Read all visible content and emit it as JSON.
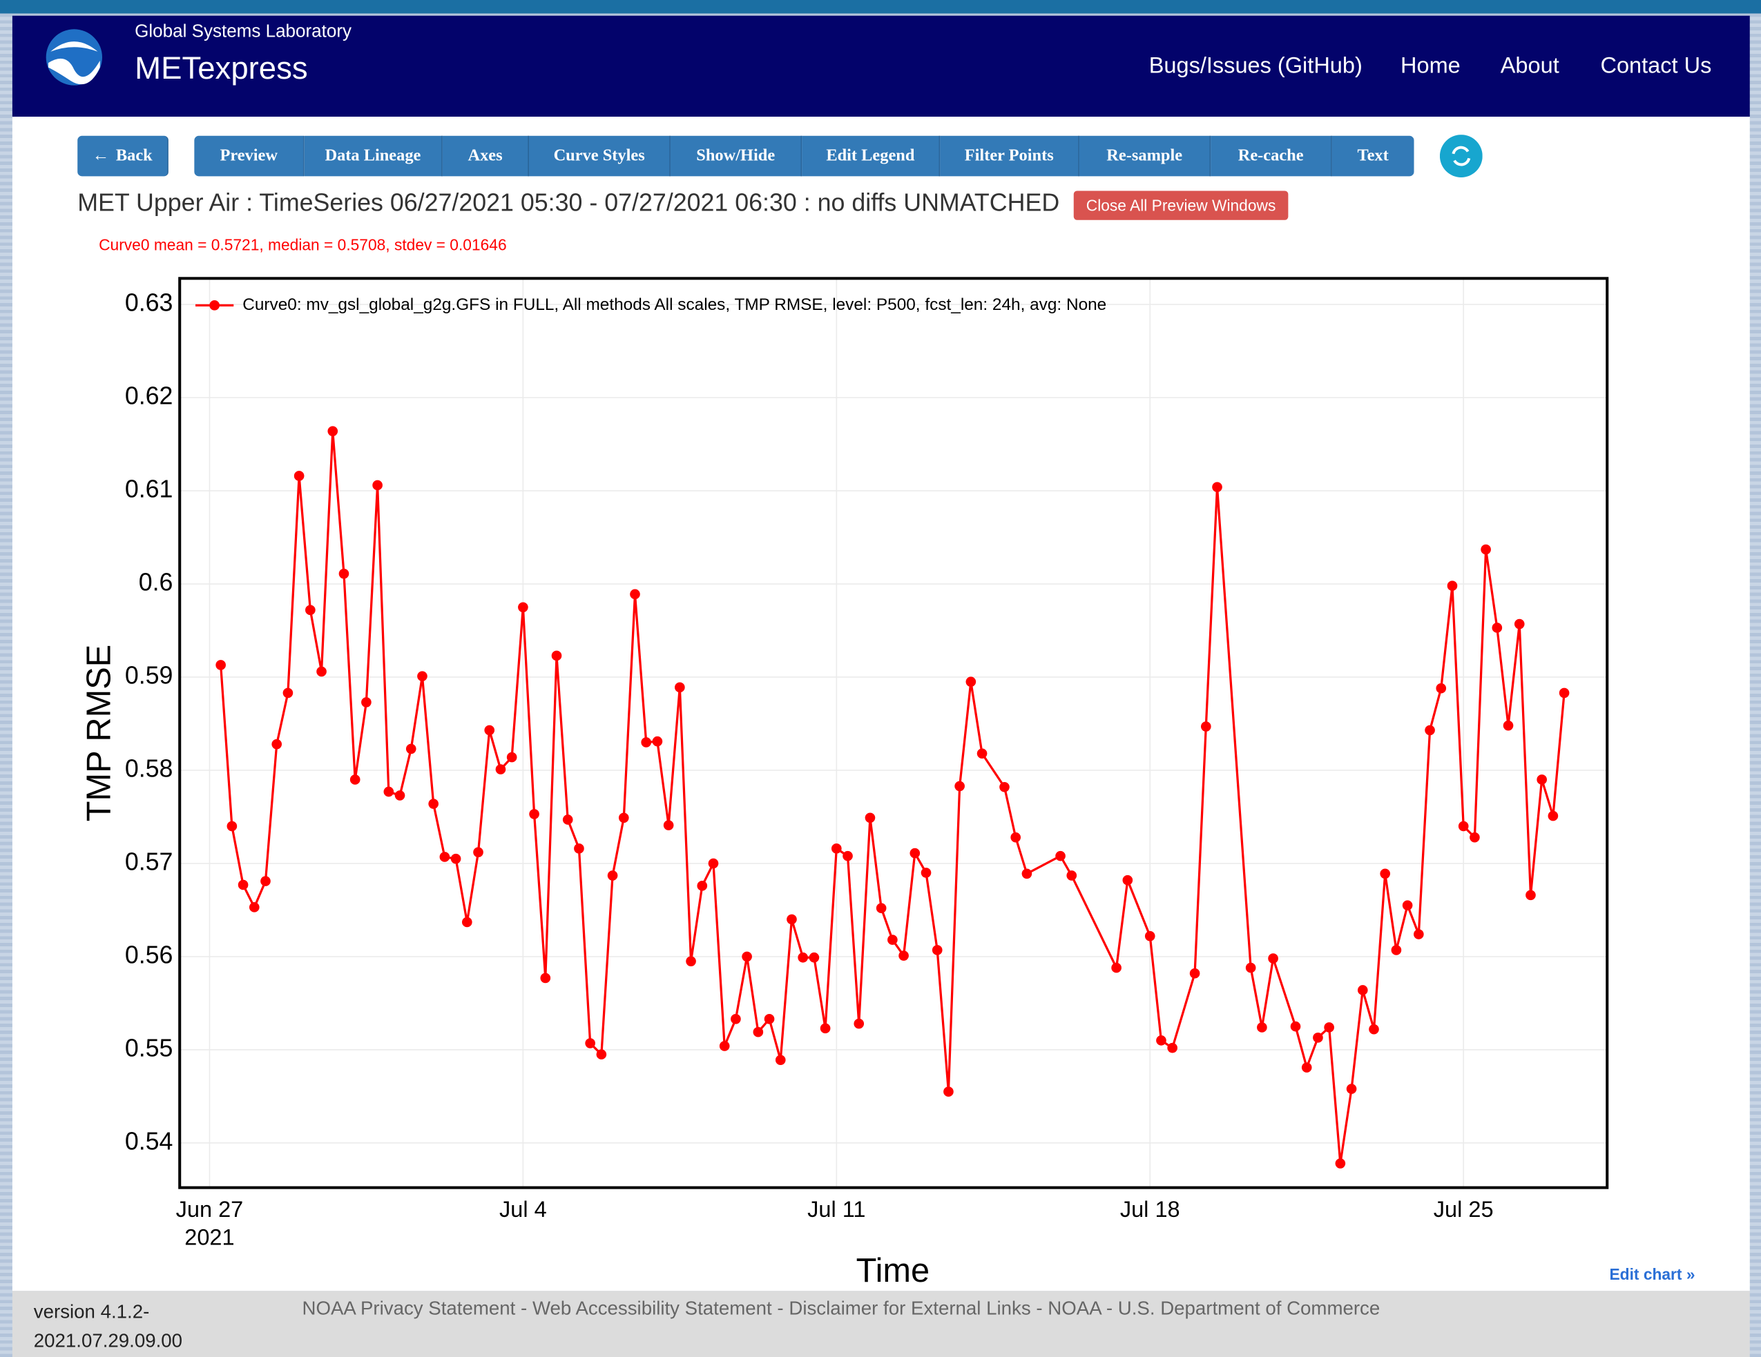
{
  "header": {
    "org": "Global Systems Laboratory",
    "app": "METexpress",
    "nav": [
      "Bugs/Issues (GitHub)",
      "Home",
      "About",
      "Contact Us"
    ]
  },
  "toolbar": {
    "back": "Back",
    "buttons": [
      "Preview",
      "Data Lineage",
      "Axes",
      "Curve Styles",
      "Show/Hide",
      "Edit Legend",
      "Filter Points",
      "Re-sample",
      "Re-cache",
      "Text"
    ]
  },
  "plot_title": "MET Upper Air : TimeSeries 06/27/2021 05:30 - 07/27/2021 06:30 : no diffs UNMATCHED",
  "close_button": "Close All Preview Windows",
  "stats": "Curve0 mean = 0.5721, median = 0.5708, stdev = 0.01646",
  "edit_chart": "Edit chart »",
  "footer": {
    "version": "version 4.1.2-2021.07.29.09.00",
    "separator": "-",
    "links": [
      "NOAA Privacy Statement",
      "Web Accessibility Statement",
      "Disclaimer for External Links",
      "NOAA",
      "U.S. Department of Commerce"
    ]
  },
  "chart_data": {
    "type": "line",
    "xlabel": "Time",
    "ylabel": "TMP RMSE",
    "grid": true,
    "legend": "top-left",
    "xlim": [
      "2021-06-26T08:00",
      "2021-07-28T05:00"
    ],
    "xticks": [
      {
        "value": "2021-06-27T00:00",
        "label": "Jun 27\n2021"
      },
      {
        "value": "2021-07-04T00:00",
        "label": "Jul 4"
      },
      {
        "value": "2021-07-11T00:00",
        "label": "Jul 11"
      },
      {
        "value": "2021-07-18T00:00",
        "label": "Jul 18"
      },
      {
        "value": "2021-07-25T00:00",
        "label": "Jul 25"
      }
    ],
    "ylim": [
      0.5352,
      0.6328
    ],
    "yticks": [
      0.54,
      0.55,
      0.56,
      0.57,
      0.58,
      0.59,
      0.6,
      0.61,
      0.62,
      0.63
    ],
    "x": [
      "2021-06-27T06:00",
      "2021-06-27T12:00",
      "2021-06-27T18:00",
      "2021-06-28T00:00",
      "2021-06-28T06:00",
      "2021-06-28T12:00",
      "2021-06-28T18:00",
      "2021-06-29T00:00",
      "2021-06-29T06:00",
      "2021-06-29T12:00",
      "2021-06-29T18:00",
      "2021-06-30T00:00",
      "2021-06-30T06:00",
      "2021-06-30T12:00",
      "2021-06-30T18:00",
      "2021-07-01T00:00",
      "2021-07-01T06:00",
      "2021-07-01T12:00",
      "2021-07-01T18:00",
      "2021-07-02T00:00",
      "2021-07-02T06:00",
      "2021-07-02T12:00",
      "2021-07-02T18:00",
      "2021-07-03T00:00",
      "2021-07-03T06:00",
      "2021-07-03T12:00",
      "2021-07-03T18:00",
      "2021-07-04T00:00",
      "2021-07-04T06:00",
      "2021-07-04T12:00",
      "2021-07-04T18:00",
      "2021-07-05T00:00",
      "2021-07-05T06:00",
      "2021-07-05T12:00",
      "2021-07-05T18:00",
      "2021-07-06T00:00",
      "2021-07-06T06:00",
      "2021-07-06T12:00",
      "2021-07-06T18:00",
      "2021-07-07T00:00",
      "2021-07-07T06:00",
      "2021-07-07T12:00",
      "2021-07-07T18:00",
      "2021-07-08T00:00",
      "2021-07-08T06:00",
      "2021-07-08T12:00",
      "2021-07-08T18:00",
      "2021-07-09T00:00",
      "2021-07-09T06:00",
      "2021-07-09T12:00",
      "2021-07-09T18:00",
      "2021-07-10T00:00",
      "2021-07-10T06:00",
      "2021-07-10T12:00",
      "2021-07-10T18:00",
      "2021-07-11T00:00",
      "2021-07-11T06:00",
      "2021-07-11T12:00",
      "2021-07-11T18:00",
      "2021-07-12T00:00",
      "2021-07-12T06:00",
      "2021-07-12T12:00",
      "2021-07-12T18:00",
      "2021-07-13T00:00",
      "2021-07-13T06:00",
      "2021-07-13T12:00",
      "2021-07-13T18:00",
      "2021-07-14T00:00",
      "2021-07-14T06:00",
      "2021-07-14T18:00",
      "2021-07-15T00:00",
      "2021-07-15T06:00",
      "2021-07-16T00:00",
      "2021-07-16T06:00",
      "2021-07-17T06:00",
      "2021-07-17T12:00",
      "2021-07-18T00:00",
      "2021-07-18T06:00",
      "2021-07-18T12:00",
      "2021-07-19T00:00",
      "2021-07-19T06:00",
      "2021-07-19T12:00",
      "2021-07-20T06:00",
      "2021-07-20T12:00",
      "2021-07-20T18:00",
      "2021-07-21T06:00",
      "2021-07-21T12:00",
      "2021-07-21T18:00",
      "2021-07-22T00:00",
      "2021-07-22T06:00",
      "2021-07-22T12:00",
      "2021-07-22T18:00",
      "2021-07-23T00:00",
      "2021-07-23T06:00",
      "2021-07-23T12:00",
      "2021-07-23T18:00",
      "2021-07-24T00:00",
      "2021-07-24T06:00",
      "2021-07-24T12:00",
      "2021-07-24T18:00",
      "2021-07-25T00:00",
      "2021-07-25T06:00",
      "2021-07-25T12:00",
      "2021-07-25T18:00",
      "2021-07-26T00:00",
      "2021-07-26T06:00",
      "2021-07-26T12:00",
      "2021-07-26T18:00",
      "2021-07-27T00:00",
      "2021-07-27T06:00"
    ],
    "series": [
      {
        "name": "Curve0: mv_gsl_global_g2g.GFS in FULL, All methods All scales, TMP RMSE, level: P500, fcst_len: 24h, avg: None",
        "color": "#ff0000",
        "values": [
          0.5913,
          0.574,
          0.5677,
          0.5653,
          0.5681,
          0.5828,
          0.5883,
          0.6116,
          0.5972,
          0.5906,
          0.6164,
          0.6011,
          0.579,
          0.5873,
          0.6106,
          0.5777,
          0.5773,
          0.5823,
          0.5901,
          0.5764,
          0.5707,
          0.5705,
          0.5637,
          0.5712,
          0.5843,
          0.5801,
          0.5814,
          0.5975,
          0.5753,
          0.5577,
          0.5923,
          0.5747,
          0.5716,
          0.5507,
          0.5495,
          0.5687,
          0.5749,
          0.5989,
          0.583,
          0.5831,
          0.5741,
          0.5889,
          0.5595,
          0.5676,
          0.57,
          0.5504,
          0.5533,
          0.56,
          0.5519,
          0.5533,
          0.5489,
          0.564,
          0.5599,
          0.5599,
          0.5523,
          0.5716,
          0.5708,
          0.5528,
          0.5749,
          0.5652,
          0.5618,
          0.5601,
          0.5711,
          0.569,
          0.5607,
          0.5455,
          0.5783,
          0.5895,
          0.5818,
          0.5782,
          0.5728,
          0.5689,
          0.5708,
          0.5687,
          0.5588,
          0.5682,
          0.5622,
          0.551,
          0.5502,
          0.5582,
          0.5847,
          0.6104,
          0.5588,
          0.5524,
          0.5598,
          0.5525,
          0.5481,
          0.5513,
          0.5524,
          0.5378,
          0.5458,
          0.5564,
          0.5522,
          0.5689,
          0.5607,
          0.5655,
          0.5624,
          0.5843,
          0.5888,
          0.5998,
          0.574,
          0.5728,
          0.6037,
          0.5953,
          0.5848,
          0.5957,
          0.5666,
          0.579,
          0.5751,
          0.5883
        ]
      }
    ]
  }
}
